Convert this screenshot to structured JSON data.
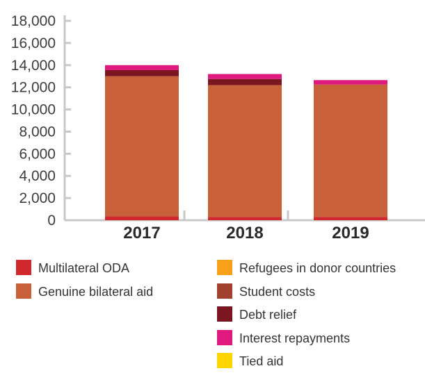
{
  "chart_data": {
    "type": "bar",
    "stacked": true,
    "categories": [
      "2017",
      "2018",
      "2019"
    ],
    "ylim": [
      0,
      18000
    ],
    "yticks": [
      0,
      2000,
      4000,
      6000,
      8000,
      10000,
      12000,
      14000,
      16000,
      18000
    ],
    "ytick_labels": [
      "0",
      "2,000",
      "4,000",
      "6,000",
      "8,000",
      "10,000",
      "12,000",
      "14,000",
      "16,000",
      "18,000"
    ],
    "grid": false,
    "legend_position": "bottom",
    "series": [
      {
        "name": "Multilateral ODA",
        "color": "#d0282e",
        "values": [
          350,
          300,
          300
        ]
      },
      {
        "name": "Genuine bilateral aid",
        "color": "#c8603a",
        "values": [
          12650,
          11900,
          11950
        ]
      },
      {
        "name": "Refugees in donor countries",
        "color": "#f7a11a",
        "values": [
          0,
          0,
          0
        ]
      },
      {
        "name": "Student costs",
        "color": "#a0422e",
        "values": [
          0,
          0,
          0
        ]
      },
      {
        "name": "Debt relief",
        "color": "#7b1520",
        "values": [
          550,
          550,
          0
        ]
      },
      {
        "name": "Interest repayments",
        "color": "#e0197e",
        "values": [
          450,
          450,
          400
        ]
      },
      {
        "name": "Tied aid",
        "color": "#ffd400",
        "values": [
          0,
          0,
          0
        ]
      }
    ]
  }
}
